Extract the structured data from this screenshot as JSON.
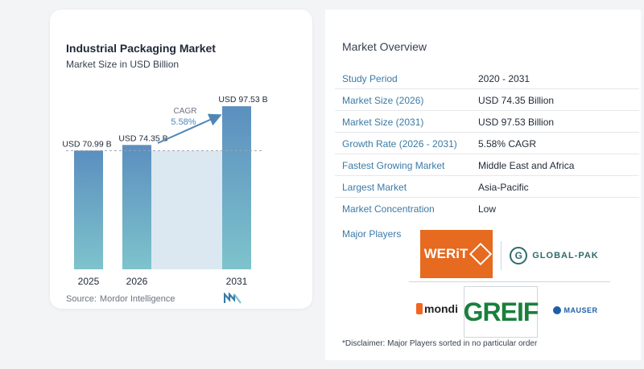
{
  "chart_data": {
    "type": "bar",
    "title": "Industrial Packaging Market",
    "subtitle": "Market Size in USD Billion",
    "categories": [
      "2025",
      "2026",
      "2031"
    ],
    "values": [
      70.99,
      74.35,
      97.53
    ],
    "value_labels": [
      "USD 70.99 B",
      "USD 74.35 B",
      "USD 97.53 B"
    ],
    "cagr_label": "CAGR",
    "cagr_value": "5.58%",
    "colors": {
      "bar_top": "#5b8fbf",
      "bar_bottom": "#7ec3cc",
      "band": "#dbe8f2",
      "arrow": "#4f86b5",
      "cagr_value": "#4f86b5"
    },
    "grid": false,
    "reference_line": "dashed at 2025 value"
  },
  "source": {
    "label": "Source:",
    "name": "Mordor Intelligence"
  },
  "overview": {
    "title": "Market Overview",
    "rows": [
      {
        "label": "Study Period",
        "value": "2020 - 2031"
      },
      {
        "label": "Market Size (2026)",
        "value": "USD 74.35 Billion"
      },
      {
        "label": "Market Size (2031)",
        "value": "USD 97.53 Billion"
      },
      {
        "label": "Growth Rate (2026 - 2031)",
        "value": "5.58% CAGR"
      },
      {
        "label": "Fastest Growing Market",
        "value": "Middle East and Africa"
      },
      {
        "label": "Largest Market",
        "value": "Asia-Pacific"
      },
      {
        "label": "Market Concentration",
        "value": "Low"
      }
    ],
    "players_title": "Major Players",
    "players": {
      "werit": "WERiT",
      "globalpak": "GLOBAL-PAK",
      "mondi": "mondi",
      "greif": "GREIF",
      "mauser": "MAUSER"
    },
    "disclaimer": "*Disclaimer: Major Players sorted in no particular order"
  }
}
